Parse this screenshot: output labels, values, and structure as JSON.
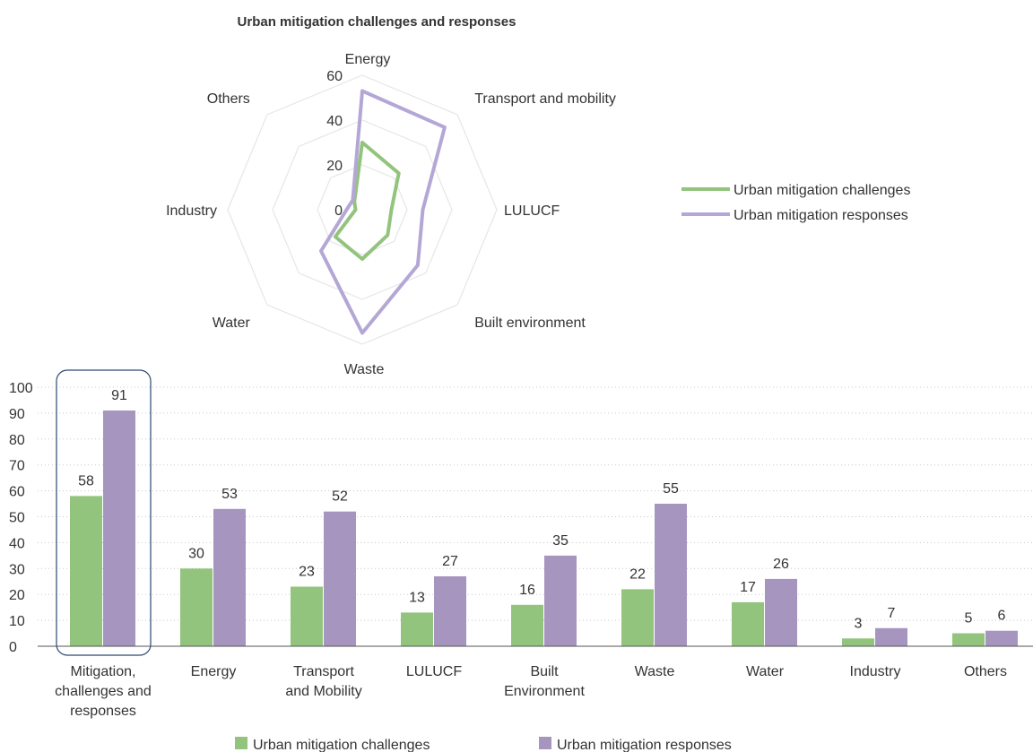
{
  "chart_data": [
    {
      "type": "radar",
      "title": "Urban mitigation challenges and responses",
      "axes": [
        "Energy",
        "Transport and mobility",
        "LULUCF",
        "Built environment",
        "Waste",
        "Water",
        "Industry",
        "Others"
      ],
      "r_ticks": [
        "0",
        "20",
        "40",
        "60"
      ],
      "rlim": [
        0,
        60
      ],
      "series": [
        {
          "name": "Urban mitigation challenges",
          "color": "#93c47d",
          "values": [
            30,
            23,
            13,
            16,
            22,
            17,
            3,
            5
          ]
        },
        {
          "name": "Urban mitigation responses",
          "color": "#b4a7d6",
          "values": [
            53,
            52,
            27,
            35,
            55,
            26,
            7,
            6
          ]
        }
      ],
      "legend_position": "right"
    },
    {
      "type": "bar",
      "title": "",
      "categories": [
        [
          "Mitigation,",
          "challenges and",
          "responses"
        ],
        [
          "Energy"
        ],
        [
          "Transport",
          "and Mobility"
        ],
        [
          "LULUCF"
        ],
        [
          "Built",
          "Environment"
        ],
        [
          "Waste"
        ],
        [
          "Water"
        ],
        [
          "Industry"
        ],
        [
          "Others"
        ]
      ],
      "series": [
        {
          "name": "Urban mitigation challenges",
          "color": "#93c47d",
          "values": [
            58,
            30,
            23,
            13,
            16,
            22,
            17,
            3,
            5
          ]
        },
        {
          "name": "Urban mitigation responses",
          "color": "#a696bf",
          "values": [
            91,
            53,
            52,
            27,
            35,
            55,
            26,
            7,
            6
          ]
        }
      ],
      "ylim": [
        0,
        100
      ],
      "yticks": [
        0,
        10,
        20,
        30,
        40,
        50,
        60,
        70,
        80,
        90,
        100
      ],
      "grid": "dotted horizontal",
      "highlighted_category": 0,
      "legend_position": "bottom"
    }
  ]
}
